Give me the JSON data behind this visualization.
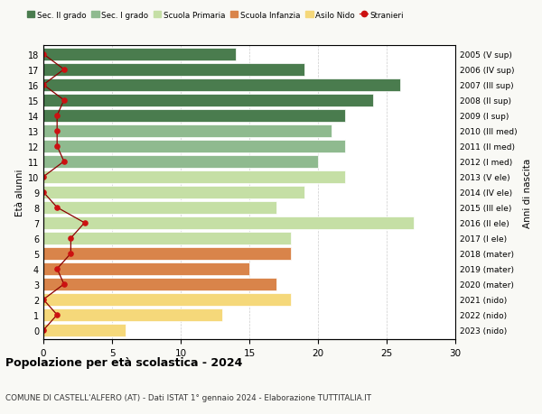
{
  "ages": [
    18,
    17,
    16,
    15,
    14,
    13,
    12,
    11,
    10,
    9,
    8,
    7,
    6,
    5,
    4,
    3,
    2,
    1,
    0
  ],
  "bar_values": [
    14,
    19,
    26,
    24,
    22,
    21,
    22,
    20,
    22,
    19,
    17,
    27,
    18,
    18,
    15,
    17,
    18,
    13,
    6
  ],
  "stranieri_values": [
    0,
    1.5,
    0,
    1.5,
    1,
    1,
    1,
    1.5,
    0,
    0,
    1,
    3,
    2,
    2,
    1,
    1.5,
    0,
    1,
    0
  ],
  "bar_colors": [
    "#4a7c4e",
    "#4a7c4e",
    "#4a7c4e",
    "#4a7c4e",
    "#4a7c4e",
    "#8fba8f",
    "#8fba8f",
    "#8fba8f",
    "#c5dfa5",
    "#c5dfa5",
    "#c5dfa5",
    "#c5dfa5",
    "#c5dfa5",
    "#d9844a",
    "#d9844a",
    "#d9844a",
    "#f5d87a",
    "#f5d87a",
    "#f5d87a"
  ],
  "year_labels": [
    "2005 (V sup)",
    "2006 (IV sup)",
    "2007 (III sup)",
    "2008 (II sup)",
    "2009 (I sup)",
    "2010 (III med)",
    "2011 (II med)",
    "2012 (I med)",
    "2013 (V ele)",
    "2014 (IV ele)",
    "2015 (III ele)",
    "2016 (II ele)",
    "2017 (I ele)",
    "2018 (mater)",
    "2019 (mater)",
    "2020 (mater)",
    "2021 (nido)",
    "2022 (nido)",
    "2023 (nido)"
  ],
  "legend_labels": [
    "Sec. II grado",
    "Sec. I grado",
    "Scuola Primaria",
    "Scuola Infanzia",
    "Asilo Nido",
    "Stranieri"
  ],
  "legend_colors": [
    "#4a7c4e",
    "#8fba8f",
    "#c5dfa5",
    "#d9844a",
    "#f5d87a",
    "#cc2222"
  ],
  "title": "Popolazione per età scolastica - 2024",
  "subtitle": "COMUNE DI CASTELL'ALFERO (AT) - Dati ISTAT 1° gennaio 2024 - Elaborazione TUTTITALIA.IT",
  "ylabel_left": "Età alunni",
  "ylabel_right": "Anni di nascita",
  "xlim": [
    0,
    30
  ],
  "background_color": "#f9f9f5",
  "plot_bg_color": "#ffffff"
}
